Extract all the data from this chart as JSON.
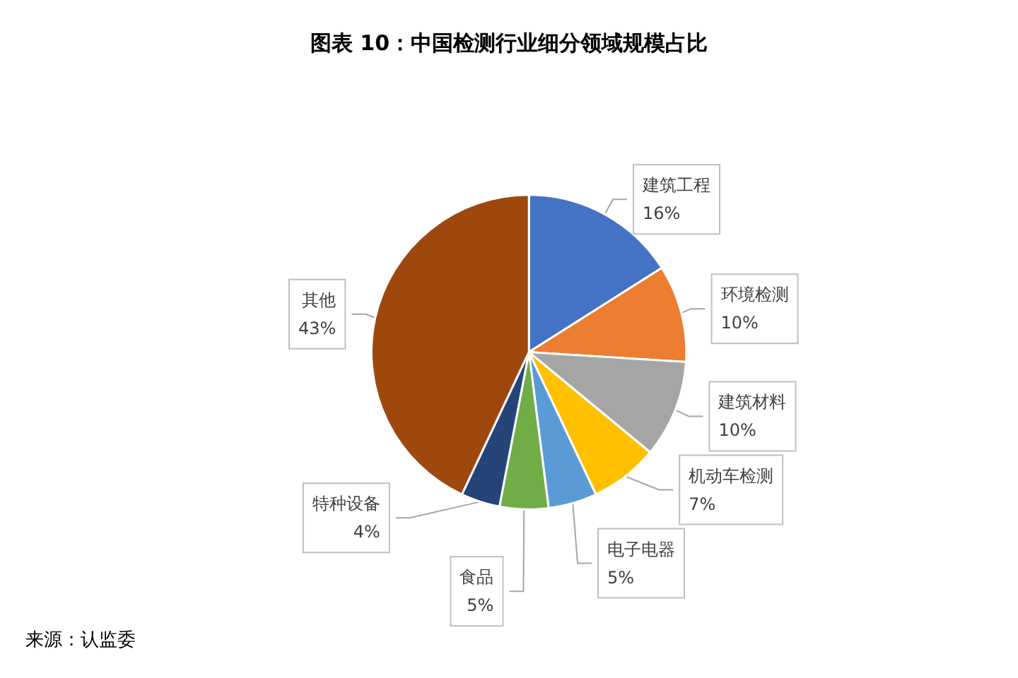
{
  "chart_data": {
    "type": "pie",
    "title": "图表 10：中国检测行业细分领域规模占比",
    "categories": [
      "建筑工程",
      "环境检测",
      "建筑材料",
      "机动车检测",
      "电子电器",
      "食品",
      "特种设备",
      "其他"
    ],
    "values": [
      16,
      10,
      10,
      7,
      5,
      5,
      4,
      43
    ],
    "value_labels": [
      "16%",
      "10%",
      "10%",
      "7%",
      "5%",
      "5%",
      "4%",
      "43%"
    ],
    "colors": [
      "#4472c4",
      "#ed7d31",
      "#a5a5a5",
      "#ffc000",
      "#5b9bd5",
      "#70ad47",
      "#264478",
      "#9e480e"
    ],
    "annotations": [
      "来源：认监委"
    ],
    "legend": false
  }
}
